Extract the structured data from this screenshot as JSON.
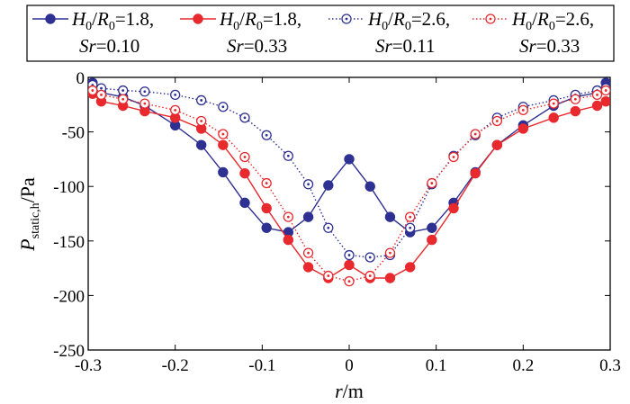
{
  "chart_data": {
    "type": "line",
    "title": "",
    "xlabel": {
      "var": "r",
      "unit": "/m"
    },
    "ylabel": {
      "var": "P",
      "sub": "static,h",
      "unit": "/Pa"
    },
    "xlim": [
      -0.3,
      0.3
    ],
    "ylim": [
      -250,
      0
    ],
    "xticks": [
      -0.3,
      -0.2,
      -0.1,
      0,
      0.1,
      0.2,
      0.3
    ],
    "xtick_labels": [
      "-0.3",
      "-0.2",
      "-0.1",
      "0",
      "0.1",
      "0.2",
      "0.3"
    ],
    "yticks": [
      0,
      -50,
      -100,
      -150,
      -200,
      -250
    ],
    "ytick_labels": [
      "0",
      "-50",
      "-100",
      "-150",
      "-200",
      "-250"
    ],
    "grid": false,
    "legend_position": "top, outside plot",
    "series": [
      {
        "name": "H0/R0=1.8, Sr=0.10",
        "legend": {
          "h": "H",
          "h_sub": "0",
          "r": "R",
          "r_sub": "0",
          "ratio": "=1.8,",
          "sr": "Sr",
          "sr_val": "=0.10"
        },
        "color": "#2e3192",
        "line": "solid",
        "marker": "filled-circle",
        "x": [
          -0.295,
          -0.285,
          -0.26,
          -0.235,
          -0.2,
          -0.17,
          -0.145,
          -0.12,
          -0.095,
          -0.07,
          -0.047,
          -0.024,
          0,
          0.024,
          0.047,
          0.07,
          0.095,
          0.12,
          0.145,
          0.17,
          0.2,
          0.235,
          0.26,
          0.285,
          0.295
        ],
        "y": [
          -5,
          -14,
          -18,
          -26,
          -44,
          -62,
          -87,
          -115,
          -138,
          -142,
          -128,
          -99,
          -75,
          -100,
          -128,
          -142,
          -138,
          -115,
          -87,
          -62,
          -44,
          -26,
          -18,
          -14,
          -5
        ]
      },
      {
        "name": "H0/R0=1.8, Sr=0.33",
        "legend": {
          "h": "H",
          "h_sub": "0",
          "r": "R",
          "r_sub": "0",
          "ratio": "=1.8,",
          "sr": "Sr",
          "sr_val": "=0.33"
        },
        "color": "#e8292d",
        "line": "solid",
        "marker": "filled-circle",
        "x": [
          -0.295,
          -0.285,
          -0.26,
          -0.235,
          -0.2,
          -0.17,
          -0.145,
          -0.12,
          -0.095,
          -0.07,
          -0.047,
          -0.024,
          0,
          0.024,
          0.047,
          0.07,
          0.095,
          0.12,
          0.145,
          0.17,
          0.2,
          0.235,
          0.26,
          0.285,
          0.295
        ],
        "y": [
          -15,
          -22,
          -26,
          -31,
          -37,
          -47,
          -62,
          -88,
          -120,
          -149,
          -174,
          -184,
          -172,
          -184,
          -184,
          -174,
          -149,
          -120,
          -88,
          -62,
          -47,
          -37,
          -31,
          -26,
          -22
        ]
      },
      {
        "name": "H0/R0=2.6, Sr=0.11",
        "legend": {
          "h": "H",
          "h_sub": "0",
          "r": "R",
          "r_sub": "0",
          "ratio": "=2.6,",
          "sr": "Sr",
          "sr_val": "=0.11"
        },
        "color": "#2e3192",
        "line": "dotted",
        "marker": "open-circle-dot",
        "x": [
          -0.295,
          -0.285,
          -0.26,
          -0.235,
          -0.2,
          -0.17,
          -0.145,
          -0.12,
          -0.095,
          -0.07,
          -0.047,
          -0.024,
          0,
          0.024,
          0.047,
          0.07,
          0.095,
          0.12,
          0.145,
          0.17,
          0.2,
          0.235,
          0.26,
          0.285,
          0.295
        ],
        "y": [
          -7,
          -10,
          -12,
          -13,
          -16,
          -21,
          -27,
          -37,
          -53,
          -72,
          -98,
          -138,
          -163,
          -165,
          -163,
          -138,
          -98,
          -72,
          -53,
          -37,
          -27,
          -21,
          -16,
          -12,
          -10
        ]
      },
      {
        "name": "H0/R0=2.6, Sr=0.33",
        "legend": {
          "h": "H",
          "h_sub": "0",
          "r": "R",
          "r_sub": "0",
          "ratio": "=2.6,",
          "sr": "Sr",
          "sr_val": "=0.33"
        },
        "color": "#e8292d",
        "line": "dotted",
        "marker": "open-circle-dot",
        "x": [
          -0.295,
          -0.285,
          -0.26,
          -0.235,
          -0.2,
          -0.17,
          -0.145,
          -0.12,
          -0.095,
          -0.07,
          -0.047,
          -0.024,
          0,
          0.024,
          0.047,
          0.07,
          0.095,
          0.12,
          0.145,
          0.17,
          0.2,
          0.235,
          0.26,
          0.285,
          0.295
        ],
        "y": [
          -12,
          -16,
          -20,
          -24,
          -30,
          -40,
          -52,
          -73,
          -97,
          -128,
          -161,
          -182,
          -187,
          -182,
          -161,
          -128,
          -97,
          -73,
          -52,
          -40,
          -30,
          -24,
          -20,
          -16,
          -12
        ]
      }
    ]
  }
}
